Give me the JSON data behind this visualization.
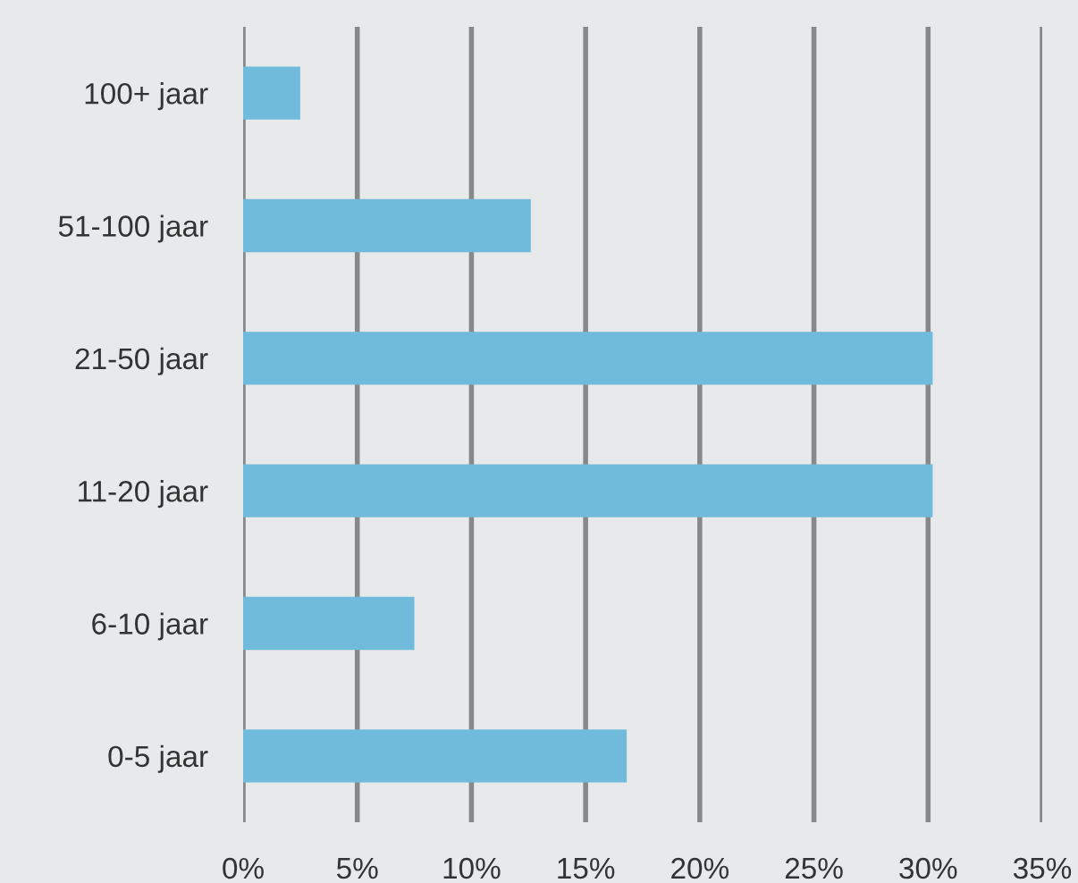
{
  "chart_data": {
    "type": "bar",
    "orientation": "horizontal",
    "categories": [
      "100+ jaar",
      "51-100 jaar",
      "21-50 jaar",
      "11-20 jaar",
      "6-10 jaar",
      "0-5 jaar"
    ],
    "values": [
      2.5,
      12.6,
      30.2,
      30.2,
      7.5,
      16.8
    ],
    "color": "#70bbdb",
    "xlim": [
      0,
      35
    ],
    "xticks": [
      {
        "value": 0,
        "label": "0%"
      },
      {
        "value": 5,
        "label": "5%"
      },
      {
        "value": 10,
        "label": "10%"
      },
      {
        "value": 15,
        "label": "15%"
      },
      {
        "value": 20,
        "label": "20%"
      },
      {
        "value": 25,
        "label": "25%"
      },
      {
        "value": 30,
        "label": "30%"
      },
      {
        "value": 35,
        "label": "35%"
      }
    ],
    "grid": "x"
  }
}
